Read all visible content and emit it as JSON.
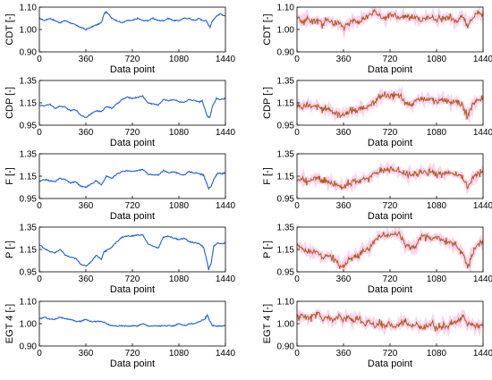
{
  "colors": {
    "left_line": "#1f5fd6",
    "right_line": "#b8581a",
    "right_band": "#f2b7e6"
  },
  "chart_data": [
    {
      "type": "line",
      "column": "left",
      "row": 0,
      "xlabel": "Data point",
      "ylabel": "CDT [-]",
      "xlim": [
        0,
        1440
      ],
      "ylim": [
        0.9,
        1.1
      ],
      "xticks": [
        "0",
        "360",
        "720",
        "1080",
        "1440"
      ],
      "yticks": [
        "0.90",
        "1.00",
        "1.10"
      ],
      "series": [
        {
          "x": [
            0,
            40,
            80,
            120,
            160,
            200,
            240,
            280,
            320,
            360,
            400,
            440,
            480,
            500,
            520,
            560,
            600,
            640,
            680,
            720,
            760,
            800,
            840,
            880,
            920,
            960,
            1000,
            1040,
            1080,
            1120,
            1160,
            1200,
            1240,
            1260,
            1290,
            1320,
            1340,
            1370,
            1400,
            1440
          ],
          "values": [
            1.05,
            1.04,
            1.05,
            1.04,
            1.03,
            1.04,
            1.03,
            1.02,
            1.01,
            1.0,
            1.01,
            1.02,
            1.03,
            1.07,
            1.08,
            1.05,
            1.04,
            1.03,
            1.04,
            1.04,
            1.05,
            1.04,
            1.04,
            1.05,
            1.04,
            1.04,
            1.05,
            1.04,
            1.04,
            1.05,
            1.05,
            1.04,
            1.05,
            1.04,
            1.04,
            1.01,
            1.04,
            1.06,
            1.07,
            1.06
          ]
        }
      ]
    },
    {
      "type": "line",
      "column": "left",
      "row": 1,
      "xlabel": "Data point",
      "ylabel": "CDP [-]",
      "xlim": [
        0,
        1440
      ],
      "ylim": [
        0.95,
        1.35
      ],
      "xticks": [
        "0",
        "360",
        "720",
        "1080",
        "1440"
      ],
      "yticks": [
        "0.95",
        "1.15",
        "1.35"
      ],
      "series": [
        {
          "x": [
            0,
            40,
            80,
            120,
            160,
            200,
            240,
            280,
            320,
            360,
            400,
            440,
            480,
            520,
            560,
            600,
            640,
            680,
            720,
            760,
            800,
            840,
            880,
            920,
            960,
            1000,
            1040,
            1080,
            1120,
            1160,
            1200,
            1240,
            1260,
            1280,
            1300,
            1320,
            1340,
            1370,
            1400,
            1440
          ],
          "values": [
            1.13,
            1.12,
            1.14,
            1.1,
            1.12,
            1.11,
            1.08,
            1.09,
            1.04,
            1.02,
            1.05,
            1.08,
            1.07,
            1.12,
            1.1,
            1.14,
            1.18,
            1.2,
            1.19,
            1.2,
            1.21,
            1.15,
            1.14,
            1.13,
            1.18,
            1.17,
            1.18,
            1.16,
            1.15,
            1.18,
            1.17,
            1.16,
            1.17,
            1.1,
            1.03,
            1.02,
            1.12,
            1.19,
            1.18,
            1.19
          ]
        }
      ]
    },
    {
      "type": "line",
      "column": "left",
      "row": 2,
      "xlabel": "Data point",
      "ylabel": "F [-]",
      "xlim": [
        0,
        1440
      ],
      "ylim": [
        0.95,
        1.35
      ],
      "xticks": [
        "0",
        "360",
        "720",
        "1080",
        "1440"
      ],
      "yticks": [
        "0.95",
        "1.15",
        "1.35"
      ],
      "series": [
        {
          "x": [
            0,
            40,
            80,
            120,
            160,
            200,
            240,
            280,
            320,
            360,
            400,
            440,
            480,
            520,
            560,
            600,
            640,
            680,
            720,
            760,
            800,
            840,
            880,
            920,
            960,
            1000,
            1040,
            1080,
            1120,
            1160,
            1200,
            1240,
            1270,
            1290,
            1310,
            1330,
            1350,
            1380,
            1410,
            1440
          ],
          "values": [
            1.1,
            1.12,
            1.11,
            1.1,
            1.13,
            1.12,
            1.09,
            1.1,
            1.06,
            1.05,
            1.08,
            1.11,
            1.07,
            1.15,
            1.13,
            1.17,
            1.19,
            1.2,
            1.19,
            1.2,
            1.21,
            1.17,
            1.16,
            1.16,
            1.2,
            1.18,
            1.19,
            1.17,
            1.16,
            1.19,
            1.18,
            1.17,
            1.16,
            1.1,
            1.04,
            1.06,
            1.12,
            1.18,
            1.17,
            1.18
          ]
        }
      ]
    },
    {
      "type": "line",
      "column": "left",
      "row": 3,
      "xlabel": "Data point",
      "ylabel": "P [-]",
      "xlim": [
        0,
        1440
      ],
      "ylim": [
        0.95,
        1.35
      ],
      "xticks": [
        "0",
        "360",
        "720",
        "1080",
        "1440"
      ],
      "yticks": [
        "0.95",
        "1.15",
        "1.35"
      ],
      "series": [
        {
          "x": [
            0,
            40,
            80,
            120,
            160,
            200,
            240,
            280,
            320,
            360,
            400,
            440,
            480,
            500,
            520,
            560,
            600,
            640,
            680,
            720,
            760,
            800,
            840,
            880,
            920,
            960,
            1000,
            1040,
            1080,
            1120,
            1160,
            1200,
            1240,
            1270,
            1290,
            1310,
            1330,
            1350,
            1380,
            1410,
            1440
          ],
          "values": [
            1.19,
            1.16,
            1.13,
            1.12,
            1.15,
            1.1,
            1.08,
            1.07,
            1.02,
            1.0,
            1.04,
            1.1,
            1.06,
            1.13,
            1.14,
            1.17,
            1.22,
            1.26,
            1.27,
            1.27,
            1.28,
            1.28,
            1.2,
            1.18,
            1.16,
            1.26,
            1.27,
            1.25,
            1.24,
            1.25,
            1.22,
            1.21,
            1.2,
            1.17,
            1.08,
            0.97,
            1.03,
            1.18,
            1.21,
            1.2,
            1.21
          ]
        }
      ]
    },
    {
      "type": "line",
      "column": "left",
      "row": 4,
      "xlabel": "Data point",
      "ylabel": "EGT 4 [-]",
      "xlim": [
        0,
        1440
      ],
      "ylim": [
        0.9,
        1.1
      ],
      "xticks": [
        "0",
        "360",
        "720",
        "1080",
        "1440"
      ],
      "yticks": [
        "0.90",
        "1.00",
        "1.10"
      ],
      "series": [
        {
          "x": [
            0,
            40,
            80,
            120,
            160,
            200,
            240,
            280,
            320,
            360,
            400,
            440,
            480,
            520,
            560,
            600,
            640,
            680,
            720,
            760,
            800,
            840,
            880,
            920,
            960,
            1000,
            1040,
            1080,
            1120,
            1160,
            1200,
            1240,
            1280,
            1300,
            1320,
            1340,
            1370,
            1400,
            1440
          ],
          "values": [
            1.02,
            1.03,
            1.02,
            1.02,
            1.03,
            1.02,
            1.02,
            1.01,
            1.01,
            1.02,
            1.01,
            1.01,
            1.01,
            1.0,
            0.99,
            0.99,
            0.99,
            0.99,
            0.99,
            0.99,
            1.0,
            0.99,
            0.99,
            0.99,
            0.99,
            0.99,
            0.99,
            1.0,
            0.99,
            1.0,
            1.0,
            1.01,
            1.02,
            1.04,
            1.01,
            0.99,
            0.99,
            0.99,
            0.99
          ]
        }
      ]
    },
    {
      "type": "line",
      "column": "right",
      "row": 0,
      "xlabel": "Data point",
      "ylabel": "CDT [-]",
      "xlim": [
        0,
        1440
      ],
      "ylim": [
        0.9,
        1.1
      ],
      "xticks": [
        "0",
        "360",
        "720",
        "1080",
        "1440"
      ],
      "yticks": [
        "0.90",
        "1.00",
        "1.10"
      ],
      "series": [
        {
          "x": [
            0,
            40,
            80,
            120,
            160,
            200,
            240,
            280,
            320,
            360,
            400,
            440,
            480,
            520,
            560,
            600,
            640,
            680,
            720,
            760,
            800,
            840,
            880,
            920,
            960,
            1000,
            1040,
            1080,
            1120,
            1160,
            1200,
            1240,
            1280,
            1320,
            1360,
            1400,
            1440
          ],
          "values": [
            1.06,
            1.03,
            1.05,
            1.03,
            1.04,
            1.02,
            1.05,
            1.02,
            1.03,
            1.01,
            1.03,
            1.04,
            1.03,
            1.05,
            1.07,
            1.08,
            1.06,
            1.05,
            1.07,
            1.06,
            1.05,
            1.06,
            1.05,
            1.06,
            1.04,
            1.05,
            1.06,
            1.04,
            1.05,
            1.06,
            1.05,
            1.04,
            1.06,
            1.02,
            1.05,
            1.08,
            1.07
          ]
        }
      ]
    },
    {
      "type": "line",
      "column": "right",
      "row": 1,
      "xlabel": "Data point",
      "ylabel": "CDP [-]",
      "xlim": [
        0,
        1440
      ],
      "ylim": [
        0.95,
        1.35
      ],
      "xticks": [
        "0",
        "360",
        "720",
        "1080",
        "1440"
      ],
      "yticks": [
        "0.95",
        "1.15",
        "1.35"
      ],
      "series": [
        {
          "x": [
            0,
            40,
            80,
            120,
            160,
            200,
            240,
            280,
            320,
            360,
            400,
            440,
            480,
            520,
            560,
            600,
            640,
            680,
            720,
            760,
            800,
            840,
            880,
            920,
            960,
            1000,
            1040,
            1080,
            1120,
            1160,
            1200,
            1240,
            1280,
            1320,
            1360,
            1400,
            1440
          ],
          "values": [
            1.13,
            1.1,
            1.14,
            1.11,
            1.12,
            1.09,
            1.1,
            1.07,
            1.05,
            1.04,
            1.07,
            1.09,
            1.08,
            1.12,
            1.11,
            1.17,
            1.2,
            1.22,
            1.21,
            1.22,
            1.2,
            1.15,
            1.14,
            1.16,
            1.19,
            1.17,
            1.18,
            1.16,
            1.17,
            1.18,
            1.16,
            1.17,
            1.12,
            1.03,
            1.14,
            1.18,
            1.19
          ]
        }
      ]
    },
    {
      "type": "line",
      "column": "right",
      "row": 2,
      "xlabel": "Data point",
      "ylabel": "F [-]",
      "xlim": [
        0,
        1440
      ],
      "ylim": [
        0.95,
        1.35
      ],
      "xticks": [
        "0",
        "360",
        "720",
        "1080",
        "1440"
      ],
      "yticks": [
        "0.95",
        "1.15",
        "1.35"
      ],
      "series": [
        {
          "x": [
            0,
            40,
            80,
            120,
            160,
            200,
            240,
            280,
            320,
            360,
            400,
            440,
            480,
            520,
            560,
            600,
            640,
            680,
            720,
            760,
            800,
            840,
            880,
            920,
            960,
            1000,
            1040,
            1080,
            1120,
            1160,
            1200,
            1240,
            1280,
            1320,
            1360,
            1400,
            1440
          ],
          "values": [
            1.11,
            1.13,
            1.1,
            1.12,
            1.13,
            1.1,
            1.11,
            1.08,
            1.07,
            1.05,
            1.09,
            1.11,
            1.09,
            1.14,
            1.13,
            1.18,
            1.19,
            1.21,
            1.2,
            1.21,
            1.2,
            1.17,
            1.16,
            1.17,
            1.2,
            1.18,
            1.19,
            1.17,
            1.17,
            1.19,
            1.17,
            1.17,
            1.14,
            1.05,
            1.13,
            1.18,
            1.18
          ]
        }
      ]
    },
    {
      "type": "line",
      "column": "right",
      "row": 3,
      "xlabel": "Data point",
      "ylabel": "P [-]",
      "xlim": [
        0,
        1440
      ],
      "ylim": [
        0.95,
        1.35
      ],
      "xticks": [
        "0",
        "360",
        "720",
        "1080",
        "1440"
      ],
      "yticks": [
        "0.95",
        "1.15",
        "1.35"
      ],
      "series": [
        {
          "x": [
            0,
            40,
            80,
            120,
            160,
            200,
            240,
            280,
            320,
            360,
            400,
            440,
            480,
            520,
            560,
            600,
            640,
            680,
            720,
            760,
            800,
            840,
            880,
            920,
            960,
            1000,
            1040,
            1080,
            1120,
            1160,
            1200,
            1240,
            1280,
            1320,
            1360,
            1400,
            1440
          ],
          "values": [
            1.19,
            1.15,
            1.13,
            1.14,
            1.12,
            1.09,
            1.1,
            1.07,
            1.02,
            1.0,
            1.05,
            1.09,
            1.08,
            1.14,
            1.16,
            1.22,
            1.27,
            1.28,
            1.27,
            1.29,
            1.27,
            1.2,
            1.17,
            1.18,
            1.27,
            1.26,
            1.25,
            1.26,
            1.23,
            1.22,
            1.2,
            1.18,
            1.12,
            0.99,
            1.12,
            1.2,
            1.21
          ]
        }
      ]
    },
    {
      "type": "line",
      "column": "right",
      "row": 4,
      "xlabel": "Data point",
      "ylabel": "EGT 4 [-]",
      "xlim": [
        0,
        1440
      ],
      "ylim": [
        0.9,
        1.1
      ],
      "xticks": [
        "0",
        "360",
        "720",
        "1080",
        "1440"
      ],
      "yticks": [
        "0.90",
        "1.00",
        "1.10"
      ],
      "series": [
        {
          "x": [
            0,
            40,
            80,
            120,
            160,
            200,
            240,
            280,
            320,
            360,
            400,
            440,
            480,
            520,
            560,
            600,
            640,
            680,
            720,
            760,
            800,
            840,
            880,
            920,
            960,
            1000,
            1040,
            1080,
            1120,
            1160,
            1200,
            1240,
            1280,
            1320,
            1360,
            1400,
            1440
          ],
          "values": [
            1.02,
            1.04,
            1.02,
            1.03,
            1.05,
            1.02,
            1.03,
            1.01,
            1.04,
            1.02,
            1.03,
            1.01,
            1.03,
            1.0,
            1.01,
            0.99,
            1.0,
            0.99,
            1.0,
            0.98,
            1.0,
            1.01,
            0.99,
            1.0,
            0.98,
            0.99,
            1.0,
            0.98,
            0.99,
            0.99,
            1.0,
            1.01,
            1.04,
            1.0,
            1.0,
            0.99,
            0.99
          ]
        }
      ]
    }
  ]
}
